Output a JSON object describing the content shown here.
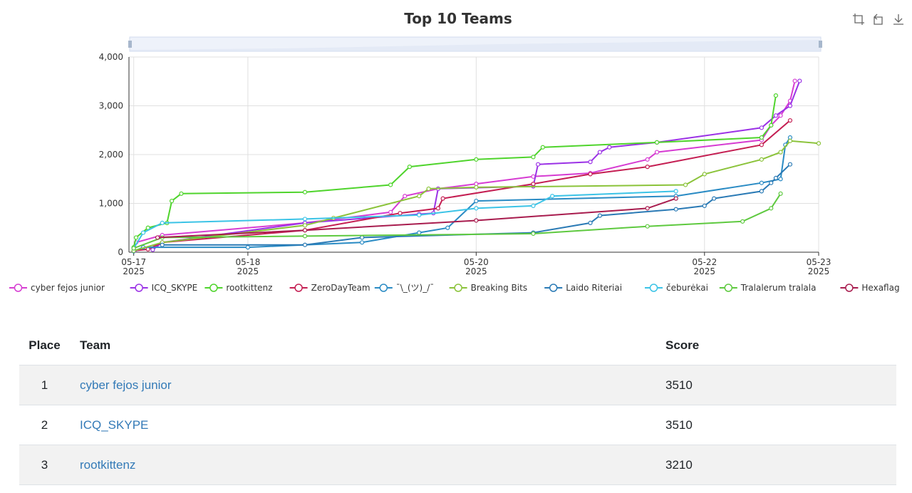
{
  "chart_data": {
    "type": "line",
    "title": "Top 10 Teams",
    "x_axis": {
      "type": "time",
      "range": [
        "2025-05-16T23:00",
        "2025-05-23T00:00"
      ],
      "ticks": [
        {
          "at": "2025-05-17T00:00",
          "label": [
            "05-17",
            "2025"
          ]
        },
        {
          "at": "2025-05-18T00:00",
          "label": [
            "05-18",
            "2025"
          ]
        },
        {
          "at": "2025-05-20T00:00",
          "label": [
            "05-20",
            "2025"
          ]
        },
        {
          "at": "2025-05-22T00:00",
          "label": [
            "05-22",
            "2025"
          ]
        },
        {
          "at": "2025-05-23T00:00",
          "label": [
            "05-23",
            "2025"
          ]
        }
      ]
    },
    "y_axis": {
      "range": [
        0,
        4000
      ],
      "ticks": [
        {
          "value": 0,
          "label": "0"
        },
        {
          "value": 1000,
          "label": "1,000"
        },
        {
          "value": 2000,
          "label": "2,000"
        },
        {
          "value": 3000,
          "label": "3,000"
        },
        {
          "value": 4000,
          "label": "4,000"
        }
      ]
    },
    "grid": true,
    "legend_position": "bottom",
    "series": [
      {
        "name": "cyber fejos junior",
        "color": "#d63cd2",
        "points": [
          [
            "2025-05-17T00:10",
            30
          ],
          [
            "2025-05-17T00:30",
            200
          ],
          [
            "2025-05-17T06:00",
            350
          ],
          [
            "2025-05-18T12:00",
            600
          ],
          [
            "2025-05-19T06:00",
            820
          ],
          [
            "2025-05-19T09:00",
            1150
          ],
          [
            "2025-05-19T16:00",
            1300
          ],
          [
            "2025-05-20T00:00",
            1400
          ],
          [
            "2025-05-20T12:00",
            1550
          ],
          [
            "2025-05-21T00:00",
            1620
          ],
          [
            "2025-05-21T12:00",
            1900
          ],
          [
            "2025-05-21T14:00",
            2050
          ],
          [
            "2025-05-22T12:00",
            2300
          ],
          [
            "2025-05-22T14:00",
            2600
          ],
          [
            "2025-05-22T16:00",
            2800
          ],
          [
            "2025-05-22T18:00",
            3100
          ],
          [
            "2025-05-22T19:00",
            3510
          ]
        ]
      },
      {
        "name": "ICQ_SKYPE",
        "color": "#9b32e6",
        "points": [
          [
            "2025-05-17T04:00",
            50
          ],
          [
            "2025-05-17T06:00",
            200
          ],
          [
            "2025-05-18T12:00",
            600
          ],
          [
            "2025-05-19T12:00",
            780
          ],
          [
            "2025-05-19T15:00",
            800
          ],
          [
            "2025-05-19T16:00",
            1300
          ],
          [
            "2025-05-20T12:00",
            1350
          ],
          [
            "2025-05-20T13:00",
            1800
          ],
          [
            "2025-05-21T00:00",
            1850
          ],
          [
            "2025-05-21T02:00",
            2050
          ],
          [
            "2025-05-21T04:00",
            2150
          ],
          [
            "2025-05-21T14:00",
            2250
          ],
          [
            "2025-05-22T12:00",
            2550
          ],
          [
            "2025-05-22T15:00",
            2800
          ],
          [
            "2025-05-22T18:00",
            3000
          ],
          [
            "2025-05-22T20:00",
            3510
          ]
        ]
      },
      {
        "name": "rootkittenz",
        "color": "#4fd42c",
        "points": [
          [
            "2025-05-17T00:00",
            100
          ],
          [
            "2025-05-17T00:30",
            300
          ],
          [
            "2025-05-17T03:00",
            500
          ],
          [
            "2025-05-17T07:00",
            600
          ],
          [
            "2025-05-17T08:00",
            1050
          ],
          [
            "2025-05-17T10:00",
            1200
          ],
          [
            "2025-05-18T12:00",
            1230
          ],
          [
            "2025-05-19T06:00",
            1380
          ],
          [
            "2025-05-19T10:00",
            1750
          ],
          [
            "2025-05-20T00:00",
            1900
          ],
          [
            "2025-05-20T12:00",
            1950
          ],
          [
            "2025-05-20T14:00",
            2150
          ],
          [
            "2025-05-21T14:00",
            2250
          ],
          [
            "2025-05-22T12:00",
            2350
          ],
          [
            "2025-05-22T14:00",
            2600
          ],
          [
            "2025-05-22T15:00",
            3210
          ]
        ]
      },
      {
        "name": "ZeroDayTeam",
        "color": "#c41e52",
        "points": [
          [
            "2025-05-17T00:00",
            30
          ],
          [
            "2025-05-17T03:00",
            60
          ],
          [
            "2025-05-17T06:00",
            200
          ],
          [
            "2025-05-18T12:00",
            450
          ],
          [
            "2025-05-19T08:00",
            800
          ],
          [
            "2025-05-19T16:00",
            900
          ],
          [
            "2025-05-19T17:00",
            1100
          ],
          [
            "2025-05-20T12:00",
            1400
          ],
          [
            "2025-05-21T00:00",
            1600
          ],
          [
            "2025-05-21T12:00",
            1750
          ],
          [
            "2025-05-22T12:00",
            2200
          ],
          [
            "2025-05-22T18:00",
            2700
          ]
        ]
      },
      {
        "name": "¯\\_(ツ)_/¯",
        "color": "#2a8bc4",
        "points": [
          [
            "2025-05-17T00:00",
            20
          ],
          [
            "2025-05-17T02:00",
            100
          ],
          [
            "2025-05-18T00:00",
            100
          ],
          [
            "2025-05-19T00:00",
            200
          ],
          [
            "2025-05-19T12:00",
            400
          ],
          [
            "2025-05-19T18:00",
            500
          ],
          [
            "2025-05-20T00:00",
            1050
          ],
          [
            "2025-05-21T18:00",
            1150
          ],
          [
            "2025-05-22T12:00",
            1420
          ],
          [
            "2025-05-22T16:00",
            1500
          ],
          [
            "2025-05-22T17:00",
            2200
          ],
          [
            "2025-05-22T18:00",
            2350
          ]
        ]
      },
      {
        "name": "Breaking Bits",
        "color": "#8bc33a",
        "points": [
          [
            "2025-05-17T00:00",
            30
          ],
          [
            "2025-05-17T06:00",
            200
          ],
          [
            "2025-05-18T12:00",
            550
          ],
          [
            "2025-05-18T18:00",
            700
          ],
          [
            "2025-05-19T12:00",
            1150
          ],
          [
            "2025-05-19T14:00",
            1300
          ],
          [
            "2025-05-20T00:00",
            1330
          ],
          [
            "2025-05-21T20:00",
            1380
          ],
          [
            "2025-05-22T00:00",
            1600
          ],
          [
            "2025-05-22T12:00",
            1900
          ],
          [
            "2025-05-22T16:00",
            2050
          ],
          [
            "2025-05-22T18:00",
            2280
          ],
          [
            "2025-05-23T00:00",
            2230
          ]
        ]
      },
      {
        "name": "Laido Riteriai",
        "color": "#2a7ab5",
        "points": [
          [
            "2025-05-17T06:00",
            150
          ],
          [
            "2025-05-18T12:00",
            150
          ],
          [
            "2025-05-19T00:00",
            300
          ],
          [
            "2025-05-20T12:00",
            400
          ],
          [
            "2025-05-21T00:00",
            600
          ],
          [
            "2025-05-21T02:00",
            750
          ],
          [
            "2025-05-21T18:00",
            880
          ],
          [
            "2025-05-22T00:00",
            950
          ],
          [
            "2025-05-22T02:00",
            1100
          ],
          [
            "2025-05-22T12:00",
            1250
          ],
          [
            "2025-05-22T14:00",
            1420
          ],
          [
            "2025-05-22T15:00",
            1520
          ],
          [
            "2025-05-22T18:00",
            1800
          ]
        ]
      },
      {
        "name": "čeburėkai",
        "color": "#3bc3e6",
        "points": [
          [
            "2025-05-17T00:00",
            80
          ],
          [
            "2025-05-17T02:00",
            400
          ],
          [
            "2025-05-17T06:00",
            600
          ],
          [
            "2025-05-18T12:00",
            680
          ],
          [
            "2025-05-19T12:00",
            760
          ],
          [
            "2025-05-20T00:00",
            900
          ],
          [
            "2025-05-20T12:00",
            950
          ],
          [
            "2025-05-20T16:00",
            1150
          ],
          [
            "2025-05-21T18:00",
            1250
          ]
        ]
      },
      {
        "name": "Tralalerum tralala",
        "color": "#5ec93f",
        "points": [
          [
            "2025-05-17T00:00",
            80
          ],
          [
            "2025-05-17T06:00",
            300
          ],
          [
            "2025-05-18T12:00",
            330
          ],
          [
            "2025-05-20T12:00",
            380
          ],
          [
            "2025-05-21T12:00",
            530
          ],
          [
            "2025-05-22T08:00",
            630
          ],
          [
            "2025-05-22T14:00",
            900
          ],
          [
            "2025-05-22T16:00",
            1200
          ]
        ]
      },
      {
        "name": "Hexaflag",
        "color": "#a81c4e",
        "points": [
          [
            "2025-05-17T05:00",
            300
          ],
          [
            "2025-05-18T12:00",
            450
          ],
          [
            "2025-05-20T00:00",
            650
          ],
          [
            "2025-05-21T12:00",
            900
          ],
          [
            "2025-05-21T18:00",
            1100
          ]
        ]
      }
    ]
  },
  "table": {
    "headers": {
      "place": "Place",
      "team": "Team",
      "score": "Score"
    },
    "rows": [
      {
        "place": "1",
        "team": "cyber fejos junior",
        "score": "3510"
      },
      {
        "place": "2",
        "team": "ICQ_SKYPE",
        "score": "3510"
      },
      {
        "place": "3",
        "team": "rootkittenz",
        "score": "3210"
      }
    ]
  },
  "toolbox": {
    "icons": [
      "zoom-icon",
      "zoom-reset-icon",
      "download-icon"
    ]
  }
}
